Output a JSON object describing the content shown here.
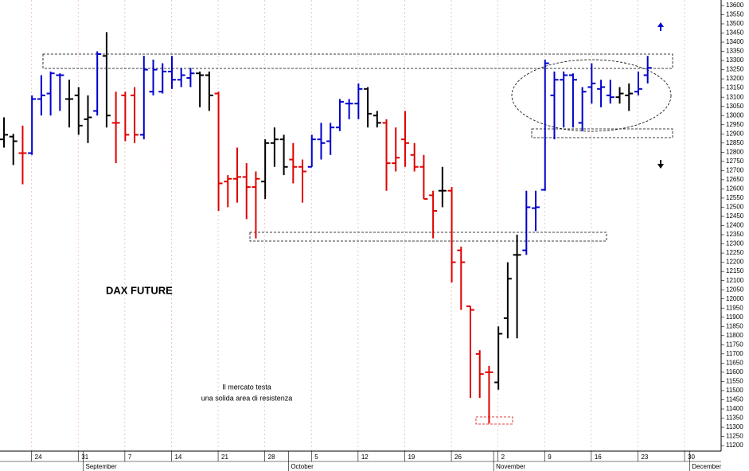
{
  "chart_data": {
    "type": "ohlc",
    "title": "DAX FUTURE",
    "annotations": [
      "Il mercato testa",
      "una solida area di resistenza"
    ],
    "categories": [
      null,
      null,
      null,
      "24",
      null,
      null,
      null,
      null,
      "31",
      null,
      null,
      null,
      null,
      "7",
      null,
      null,
      null,
      null,
      "14",
      null,
      null,
      null,
      null,
      "21",
      null,
      null,
      null,
      null,
      "28",
      null,
      null,
      null,
      null,
      "5",
      null,
      null,
      null,
      null,
      "12",
      null,
      null,
      null,
      null,
      "19",
      null,
      null,
      null,
      null,
      "26",
      null,
      null,
      null,
      null,
      "2",
      null,
      null,
      null,
      null,
      "9",
      null,
      null,
      null,
      null,
      "16",
      null,
      null,
      null,
      null,
      "23",
      null,
      null,
      null,
      null,
      "30",
      null,
      null
    ],
    "months": [
      "September",
      "October",
      "November",
      "December"
    ],
    "open": [
      12870,
      12885,
      12795,
      12795,
      13090,
      13120,
      13220,
      13090,
      13110,
      12980,
      13025,
      13325,
      12960,
      13110,
      13110,
      12895,
      13130,
      13130,
      13240,
      13195,
      13205,
      13230,
      13220,
      13120,
      12640,
      12655,
      12665,
      12610,
      12640,
      12850,
      12870,
      12760,
      12720,
      12720,
      12870,
      12860,
      12935,
      13065,
      13065,
      13145,
      13000,
      12960,
      12740,
      12870,
      12785,
      12720,
      12565,
      12590,
      12590,
      12265,
      11960,
      11700,
      11600,
      11545,
      11895,
      12240,
      12265,
      12495,
      12595,
      13110,
      13195,
      13220,
      12960,
      13155,
      13145,
      13110,
      13100,
      13110,
      13130,
      13220,
      null,
      null,
      null,
      null,
      null,
      null
    ],
    "high": [
      12990,
      12900,
      12945,
      13110,
      13220,
      13240,
      13230,
      13195,
      13155,
      13110,
      13350,
      13455,
      13130,
      13130,
      13155,
      13325,
      13305,
      13285,
      13325,
      13260,
      13260,
      13240,
      13240,
      13130,
      12675,
      12825,
      12740,
      12695,
      12870,
      12935,
      12895,
      12850,
      12760,
      12895,
      12960,
      12960,
      13090,
      13090,
      13175,
      13155,
      13025,
      12980,
      12935,
      13025,
      12850,
      12785,
      12590,
      12720,
      12610,
      12285,
      11960,
      11720,
      11635,
      11850,
      12200,
      12350,
      12590,
      12590,
      13305,
      13240,
      13240,
      13230,
      13155,
      13285,
      13195,
      13195,
      13155,
      13175,
      13240,
      13325,
      null,
      null,
      null,
      null,
      null,
      null
    ],
    "low": [
      12825,
      12730,
      12625,
      12785,
      13000,
      13000,
      13025,
      12935,
      12895,
      12850,
      13000,
      12935,
      12740,
      12860,
      12850,
      12870,
      13110,
      13120,
      13145,
      13155,
      13155,
      13045,
      13025,
      12480,
      12500,
      12525,
      12435,
      12330,
      12545,
      12720,
      12675,
      12630,
      12525,
      12720,
      12760,
      12785,
      12915,
      12980,
      12980,
      12935,
      12935,
      12590,
      12695,
      12720,
      12695,
      12545,
      12330,
      12500,
      12090,
      11940,
      11460,
      11460,
      11320,
      11505,
      11785,
      11785,
      12240,
      12370,
      12590,
      12870,
      12935,
      12935,
      12915,
      13065,
      13045,
      13065,
      13065,
      13025,
      13110,
      13175,
      null,
      null,
      null,
      null,
      null,
      null
    ],
    "close": [
      12895,
      12860,
      12795,
      13090,
      13110,
      13230,
      13220,
      13090,
      12945,
      12990,
      13335,
      13000,
      12960,
      12895,
      12895,
      13250,
      13250,
      13240,
      13195,
      13220,
      13230,
      13220,
      13110,
      12630,
      12655,
      12665,
      12610,
      12655,
      12850,
      12870,
      12720,
      12720,
      12695,
      12870,
      12850,
      12935,
      13075,
      13065,
      13145,
      13010,
      12960,
      12740,
      12770,
      12850,
      12720,
      12545,
      12480,
      12590,
      12200,
      12200,
      11940,
      11590,
      11600,
      11810,
      12110,
      12240,
      12500,
      12500,
      13285,
      13195,
      13220,
      13195,
      13130,
      13175,
      13155,
      13100,
      13120,
      13120,
      13145,
      13260,
      null,
      null,
      null,
      null,
      null,
      null
    ],
    "colors": [
      "#000000",
      "#000000",
      "#e00000",
      "#0000cc",
      "#0000cc",
      "#0000cc",
      "#0000cc",
      "#000000",
      "#000000",
      "#000000",
      "#0000cc",
      "#000000",
      "#e00000",
      "#e00000",
      "#e00000",
      "#0000cc",
      "#0000cc",
      "#0000cc",
      "#0000cc",
      "#0000cc",
      "#0000cc",
      "#000000",
      "#000000",
      "#e00000",
      "#e00000",
      "#e00000",
      "#e00000",
      "#e00000",
      "#000000",
      "#000000",
      "#000000",
      "#e00000",
      "#e00000",
      "#0000cc",
      "#0000cc",
      "#0000cc",
      "#0000cc",
      "#0000cc",
      "#0000cc",
      "#000000",
      "#000000",
      "#e00000",
      "#e00000",
      "#e00000",
      "#e00000",
      "#e00000",
      "#e00000",
      "#000000",
      "#e00000",
      "#e00000",
      "#e00000",
      "#e00000",
      "#e00000",
      "#000000",
      "#000000",
      "#000000",
      "#0000cc",
      "#0000cc",
      "#0000cc",
      "#0000cc",
      "#0000cc",
      "#0000cc",
      "#0000cc",
      "#0000cc",
      "#0000cc",
      "#0000cc",
      "#000000",
      "#000000",
      "#0000cc",
      "#0000cc",
      null,
      null,
      null,
      null,
      null,
      null
    ],
    "ylim": [
      11170,
      13630
    ],
    "yticks": [
      11200,
      11250,
      11300,
      11350,
      11400,
      11450,
      11500,
      11550,
      11600,
      11650,
      11700,
      11750,
      11800,
      11850,
      11900,
      11950,
      12000,
      12050,
      12100,
      12150,
      12200,
      12250,
      12300,
      12350,
      12400,
      12450,
      12500,
      12550,
      12600,
      12650,
      12700,
      12750,
      12800,
      12850,
      12900,
      12950,
      13000,
      13050,
      13100,
      13150,
      13200,
      13250,
      13300,
      13350,
      13400,
      13450,
      13500,
      13550,
      13600
    ],
    "grid": true
  }
}
